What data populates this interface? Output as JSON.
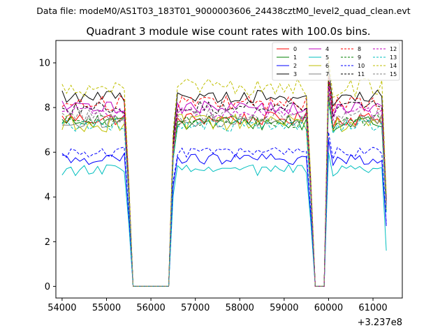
{
  "chart_data": {
    "type": "line",
    "super_title": "Data file: modeM0/AS1T03_183T01_9000003606_24438cztM0_level2_quad_clean.evt",
    "title": "Quadrant 3 module wise count rates with 100.0s bins.",
    "xlabel": "",
    "ylabel": "",
    "x_offset_label": "+3.237e8",
    "xlim": [
      53860,
      61660
    ],
    "ylim": [
      -0.52,
      11.0
    ],
    "xticks": [
      54000,
      55000,
      56000,
      57000,
      58000,
      59000,
      60000,
      61000
    ],
    "yticks": [
      0,
      2,
      4,
      6,
      8,
      10
    ],
    "x_start": 54000,
    "x_step": 100,
    "gaps": [
      {
        "start_index": 16,
        "end_index": 24
      },
      {
        "start_index": 57,
        "end_index": 59
      }
    ],
    "legend_placement": "top-right",
    "legend_columns": 4,
    "series": [
      {
        "name": "0",
        "color": "#ff0000",
        "dash": false,
        "base": 7.5,
        "jitter": 0.3,
        "end": 3.5
      },
      {
        "name": "1",
        "color": "#008000",
        "dash": false,
        "base": 7.3,
        "jitter": 0.3,
        "end": 3.4
      },
      {
        "name": "2",
        "color": "#0000ff",
        "dash": false,
        "base": 5.7,
        "jitter": 0.25,
        "end": 2.7
      },
      {
        "name": "3",
        "color": "#000000",
        "dash": false,
        "base": 8.5,
        "jitter": 0.3,
        "end": 3.9
      },
      {
        "name": "4",
        "color": "#bf00bf",
        "dash": false,
        "base": 8.0,
        "jitter": 0.3,
        "end": 3.7
      },
      {
        "name": "5",
        "color": "#00bfbf",
        "dash": false,
        "base": 5.2,
        "jitter": 0.25,
        "end": 1.6
      },
      {
        "name": "6",
        "color": "#bfbf00",
        "dash": false,
        "base": 7.3,
        "jitter": 0.4,
        "end": 3.4
      },
      {
        "name": "7",
        "color": "#808080",
        "dash": false,
        "base": 7.4,
        "jitter": 0.3,
        "end": 3.4
      },
      {
        "name": "8",
        "color": "#ff0000",
        "dash": true,
        "base": 8.2,
        "jitter": 0.35,
        "end": 3.8
      },
      {
        "name": "9",
        "color": "#008000",
        "dash": true,
        "base": 7.4,
        "jitter": 0.3,
        "end": 3.4
      },
      {
        "name": "10",
        "color": "#0000ff",
        "dash": true,
        "base": 6.0,
        "jitter": 0.25,
        "end": 2.8
      },
      {
        "name": "11",
        "color": "#000000",
        "dash": true,
        "base": 8.0,
        "jitter": 0.3,
        "end": 3.7
      },
      {
        "name": "12",
        "color": "#bf00bf",
        "dash": true,
        "base": 7.8,
        "jitter": 0.3,
        "end": 3.6
      },
      {
        "name": "13",
        "color": "#00bfbf",
        "dash": true,
        "base": 7.2,
        "jitter": 0.3,
        "end": 3.3
      },
      {
        "name": "14",
        "color": "#bfbf00",
        "dash": true,
        "base": 8.9,
        "jitter": 0.4,
        "end": 4.1
      },
      {
        "name": "15",
        "color": "#808080",
        "dash": true,
        "base": 7.6,
        "jitter": 0.3,
        "end": 3.5
      }
    ]
  }
}
